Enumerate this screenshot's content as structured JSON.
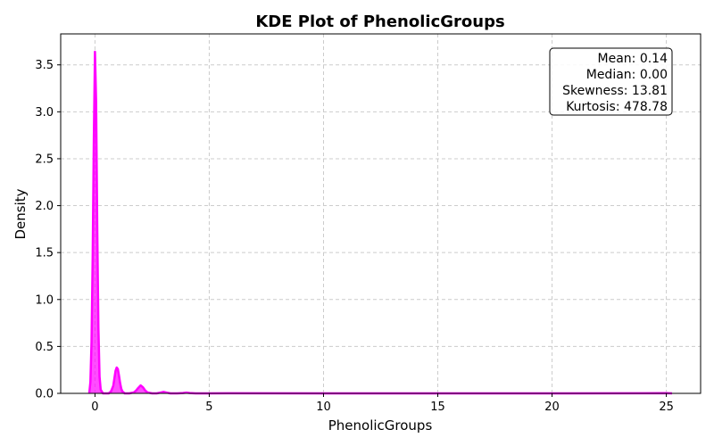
{
  "chart_data": {
    "type": "area",
    "title": "KDE Plot of PhenolicGroups",
    "xlabel": "PhenolicGroups",
    "ylabel": "Density",
    "xlim": [
      -1.5,
      26.5
    ],
    "ylim": [
      0,
      3.83
    ],
    "xticks": [
      0,
      5,
      10,
      15,
      20,
      25
    ],
    "yticks": [
      0.0,
      0.5,
      1.0,
      1.5,
      2.0,
      2.5,
      3.0,
      3.5
    ],
    "xtick_labels": [
      "0",
      "5",
      "10",
      "15",
      "20",
      "25"
    ],
    "ytick_labels": [
      "0.0",
      "0.5",
      "1.0",
      "1.5",
      "2.0",
      "2.5",
      "3.0",
      "3.5"
    ],
    "grid": true,
    "color": "#ff00ff",
    "series": [
      {
        "x": [
          -0.25,
          -0.2,
          -0.15,
          -0.1,
          -0.05,
          0.0,
          0.05,
          0.1,
          0.15,
          0.2,
          0.25,
          0.35,
          0.5,
          0.6,
          0.7,
          0.8,
          0.85,
          0.9,
          0.95,
          1.0,
          1.05,
          1.1,
          1.15,
          1.2,
          1.3,
          1.5,
          1.7,
          1.8,
          1.9,
          2.0,
          2.1,
          2.2,
          2.3,
          2.5,
          2.7,
          2.85,
          3.0,
          3.15,
          3.3,
          3.6,
          3.85,
          4.0,
          4.15,
          4.4,
          5.0,
          6.0,
          10.0,
          15.0,
          20.0,
          24.0,
          25.0,
          25.25
        ],
        "y": [
          0.0,
          0.12,
          0.55,
          1.45,
          2.7,
          3.64,
          3.1,
          1.75,
          0.7,
          0.18,
          0.04,
          0.0,
          0.0,
          0.0,
          0.02,
          0.08,
          0.16,
          0.24,
          0.275,
          0.26,
          0.19,
          0.11,
          0.05,
          0.02,
          0.0,
          0.0,
          0.01,
          0.03,
          0.06,
          0.085,
          0.065,
          0.03,
          0.01,
          0.0,
          0.0,
          0.008,
          0.016,
          0.008,
          0.0,
          0.0,
          0.004,
          0.008,
          0.004,
          0.0,
          0.0,
          0.001,
          0.0,
          0.0,
          0.0,
          0.001,
          0.002,
          0.0
        ]
      }
    ]
  },
  "stats": {
    "mean": "Mean: 0.14",
    "median": "Median: 0.00",
    "skewness": "Skewness: 13.81",
    "kurtosis": "Kurtosis: 478.78"
  }
}
